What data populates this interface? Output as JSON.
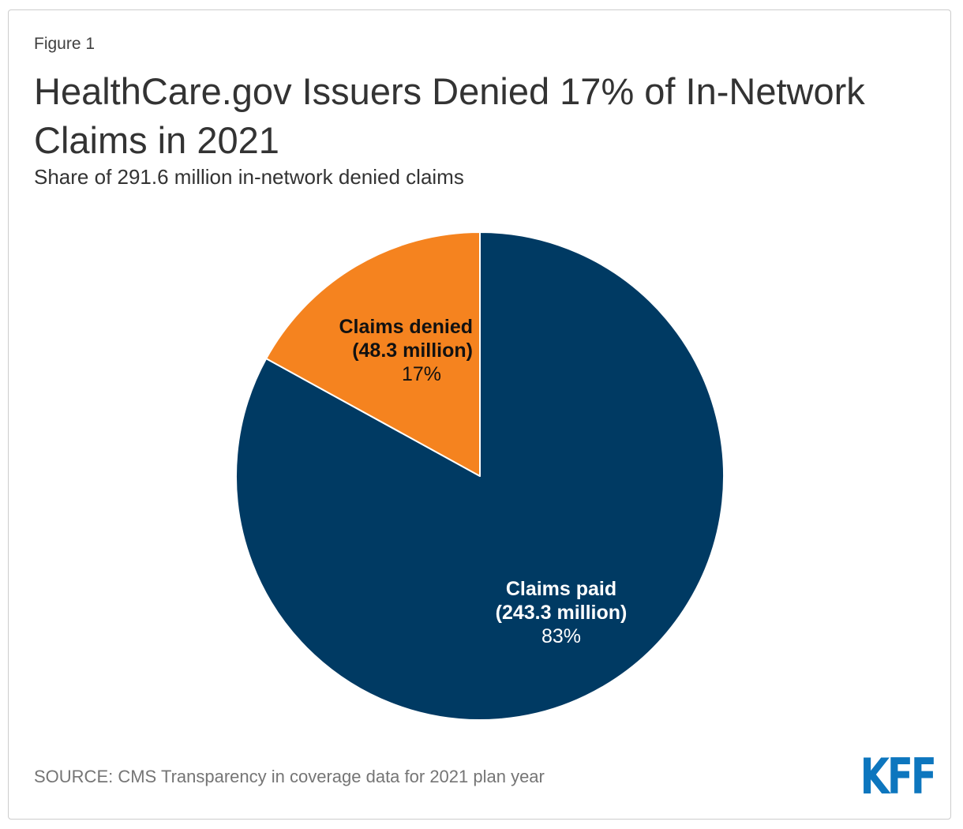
{
  "figure_label": "Figure 1",
  "title": "HealthCare.gov Issuers Denied 17% of In-Network Claims in 2021",
  "subtitle": "Share of 291.6 million in-network denied claims",
  "source": "SOURCE: CMS Transparency in coverage data for 2021 plan year",
  "logo_text": "KFF",
  "colors": {
    "claims_paid": "#003A63",
    "claims_denied": "#F5831F",
    "slice_stroke": "#FFFFFF",
    "title_text": "#333333",
    "source_text": "#757575",
    "kff_blue": "#0D76BE",
    "frame_border": "#CCCCCC"
  },
  "chart_data": {
    "type": "pie",
    "title": "HealthCare.gov Issuers Denied 17% of In-Network Claims in 2021",
    "subtitle": "Share of 291.6 million in-network denied claims",
    "total_millions": 291.6,
    "units": "millions of in-network claims",
    "start_angle_deg": 0,
    "direction": "clockwise",
    "legend": "none",
    "slices": [
      {
        "id": "claims-paid",
        "label": "Claims paid",
        "sublabel": "(243.3 million)",
        "percent_text": "83%",
        "value_millions": 243.3,
        "percent": 83,
        "color": "#003A63",
        "label_color": "#FFFFFF"
      },
      {
        "id": "claims-denied",
        "label": "Claims denied",
        "sublabel": "(48.3 million)",
        "percent_text": "17%",
        "value_millions": 48.3,
        "percent": 17,
        "color": "#F5831F",
        "label_color": "#111111"
      }
    ]
  }
}
